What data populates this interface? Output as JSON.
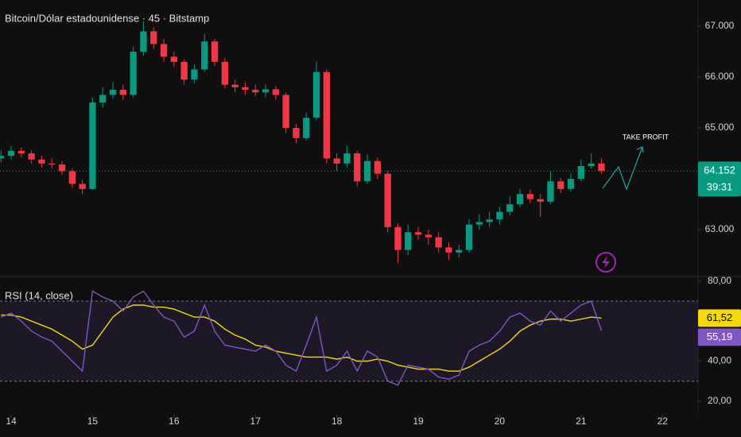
{
  "chart_data": [
    {
      "type": "candlestick",
      "title": "Bitcoin/Dólar estadounidense · 45 · Bitstamp",
      "annotation": "TAKE PROFIT",
      "up_color": "#089981",
      "down_color": "#f23645",
      "x": [
        13.875,
        14,
        14.125,
        14.25,
        14.375,
        14.5,
        14.625,
        14.75,
        14.875,
        15,
        15.125,
        15.25,
        15.375,
        15.5,
        15.625,
        15.75,
        15.875,
        16,
        16.125,
        16.25,
        16.375,
        16.5,
        16.625,
        16.75,
        16.875,
        17,
        17.125,
        17.25,
        17.375,
        17.5,
        17.625,
        17.75,
        17.875,
        18,
        18.125,
        18.25,
        18.375,
        18.5,
        18.625,
        18.75,
        18.875,
        19,
        19.125,
        19.25,
        19.375,
        19.5,
        19.625,
        19.75,
        19.875,
        20,
        20.125,
        20.25,
        20.375,
        20.5,
        20.625,
        20.75,
        20.875,
        21,
        21.125,
        21.25
      ],
      "candles": [
        [
          64400,
          64560,
          64320,
          64450
        ],
        [
          64450,
          64650,
          64380,
          64550
        ],
        [
          64550,
          64620,
          64420,
          64500
        ],
        [
          64500,
          64560,
          64300,
          64380
        ],
        [
          64380,
          64450,
          64220,
          64300
        ],
        [
          64300,
          64400,
          64200,
          64280
        ],
        [
          64280,
          64350,
          64080,
          64150
        ],
        [
          64150,
          64200,
          63820,
          63900
        ],
        [
          63900,
          63980,
          63700,
          63800
        ],
        [
          63800,
          65600,
          63780,
          65500
        ],
        [
          65500,
          65800,
          65400,
          65650
        ],
        [
          65650,
          65900,
          65580,
          65750
        ],
        [
          65750,
          65850,
          65550,
          65650
        ],
        [
          65650,
          66600,
          65600,
          66500
        ],
        [
          66500,
          67100,
          66420,
          66900
        ],
        [
          66900,
          66980,
          66550,
          66650
        ],
        [
          66650,
          66750,
          66300,
          66400
        ],
        [
          66400,
          66500,
          66200,
          66300
        ],
        [
          66300,
          66350,
          65850,
          65950
        ],
        [
          65950,
          66250,
          65880,
          66150
        ],
        [
          66150,
          66850,
          66100,
          66700
        ],
        [
          66700,
          66750,
          66220,
          66300
        ],
        [
          66300,
          66380,
          65780,
          65850
        ],
        [
          65850,
          65950,
          65700,
          65800
        ],
        [
          65800,
          65900,
          65650,
          65750
        ],
        [
          65750,
          65850,
          65620,
          65700
        ],
        [
          65700,
          65850,
          65600,
          65760
        ],
        [
          65760,
          65820,
          65560,
          65650
        ],
        [
          65650,
          65700,
          64900,
          65000
        ],
        [
          65000,
          65080,
          64700,
          64800
        ],
        [
          64800,
          65300,
          64750,
          65200
        ],
        [
          65200,
          66300,
          65150,
          66100
        ],
        [
          66100,
          66150,
          64300,
          64400
        ],
        [
          64400,
          64500,
          64150,
          64300
        ],
        [
          64300,
          64650,
          64220,
          64500
        ],
        [
          64500,
          64550,
          63850,
          63950
        ],
        [
          63950,
          64480,
          63900,
          64350
        ],
        [
          64350,
          64420,
          64000,
          64100
        ],
        [
          64100,
          64150,
          62950,
          63050
        ],
        [
          63050,
          63120,
          62350,
          62600
        ],
        [
          62600,
          63100,
          62500,
          62950
        ],
        [
          62950,
          63050,
          62800,
          62900
        ],
        [
          62900,
          63000,
          62700,
          62850
        ],
        [
          62850,
          62950,
          62550,
          62650
        ],
        [
          62650,
          62750,
          62400,
          62550
        ],
        [
          62550,
          62700,
          62450,
          62600
        ],
        [
          62600,
          63200,
          62550,
          63100
        ],
        [
          63100,
          63300,
          63000,
          63150
        ],
        [
          63150,
          63350,
          63050,
          63200
        ],
        [
          63200,
          63450,
          63100,
          63350
        ],
        [
          63350,
          63650,
          63280,
          63500
        ],
        [
          63500,
          63800,
          63450,
          63700
        ],
        [
          63700,
          63780,
          63520,
          63600
        ],
        [
          63600,
          63700,
          63250,
          63550
        ],
        [
          63550,
          64150,
          63500,
          63950
        ],
        [
          63950,
          64020,
          63720,
          63800
        ],
        [
          63800,
          64100,
          63750,
          64000
        ],
        [
          64000,
          64380,
          63950,
          64250
        ],
        [
          64250,
          64500,
          64200,
          64300
        ],
        [
          64300,
          64400,
          64100,
          64152
        ]
      ],
      "last_price": {
        "value": 64152,
        "label": "64.152"
      },
      "countdown": "39:31",
      "xlim": [
        13.863,
        22.437
      ],
      "ylim": [
        62094,
        67516
      ],
      "yticks": [
        {
          "value": 63000,
          "label": "63.000"
        },
        {
          "value": 65000,
          "label": "65.000"
        },
        {
          "value": 66000,
          "label": "66.000"
        },
        {
          "value": 67000,
          "label": "67.000"
        }
      ]
    },
    {
      "type": "line",
      "title": "RSI (14, close)",
      "x": [
        13.875,
        14,
        14.125,
        14.25,
        14.375,
        14.5,
        14.625,
        14.75,
        14.875,
        15,
        15.125,
        15.25,
        15.375,
        15.5,
        15.625,
        15.75,
        15.875,
        16,
        16.125,
        16.25,
        16.375,
        16.5,
        16.625,
        16.75,
        16.875,
        17,
        17.125,
        17.25,
        17.375,
        17.5,
        17.625,
        17.75,
        17.875,
        18,
        18.125,
        18.25,
        18.375,
        18.5,
        18.625,
        18.75,
        18.875,
        19,
        19.125,
        19.25,
        19.375,
        19.5,
        19.625,
        19.75,
        19.875,
        20,
        20.125,
        20.25,
        20.375,
        20.5,
        20.625,
        20.75,
        20.875,
        21,
        21.125,
        21.25
      ],
      "series": [
        {
          "color": "#f5d90a",
          "values": [
            63,
            63,
            62,
            60,
            58,
            56,
            53,
            50,
            46,
            48,
            55,
            62,
            66,
            68,
            68,
            67,
            67,
            66,
            64,
            62,
            62,
            60,
            56,
            53,
            51,
            48,
            47,
            45,
            44,
            43,
            42,
            42,
            42,
            41,
            42,
            40,
            40,
            41,
            40,
            38,
            37,
            36,
            36,
            36,
            35,
            35,
            37,
            40,
            43,
            46,
            50,
            55,
            58,
            60,
            61,
            61,
            60,
            61,
            62,
            61.52
          ],
          "value_labels": [
            null,
            null,
            null,
            null,
            null,
            null,
            null,
            null,
            null,
            null,
            null,
            null,
            null,
            null,
            null,
            null,
            null,
            null,
            null,
            null,
            null,
            null,
            null,
            null,
            null,
            null,
            null,
            null,
            null,
            null,
            null,
            null,
            null,
            null,
            null,
            null,
            null,
            null,
            null,
            null,
            null,
            null,
            null,
            null,
            null,
            null,
            null,
            null,
            null,
            null,
            null,
            null,
            null,
            null,
            null,
            null,
            null,
            null,
            null,
            "61,52"
          ]
        },
        {
          "color": "#7e57c2",
          "values": [
            62,
            64,
            60,
            55,
            52,
            50,
            45,
            40,
            35,
            75,
            72,
            70,
            65,
            72,
            75,
            68,
            62,
            60,
            52,
            55,
            68,
            55,
            48,
            47,
            46,
            45,
            48,
            45,
            38,
            35,
            48,
            62,
            35,
            38,
            45,
            35,
            45,
            42,
            30,
            28,
            38,
            37,
            36,
            32,
            31,
            33,
            45,
            48,
            50,
            55,
            62,
            64,
            60,
            58,
            65,
            60,
            64,
            68,
            70,
            55.19
          ],
          "value_labels": [
            null,
            null,
            null,
            null,
            null,
            null,
            null,
            null,
            null,
            null,
            null,
            null,
            null,
            null,
            null,
            null,
            null,
            null,
            null,
            null,
            null,
            null,
            null,
            null,
            null,
            null,
            null,
            null,
            null,
            null,
            null,
            null,
            null,
            null,
            null,
            null,
            null,
            null,
            null,
            null,
            null,
            null,
            null,
            null,
            null,
            null,
            null,
            null,
            null,
            null,
            null,
            null,
            null,
            null,
            null,
            null,
            null,
            null,
            null,
            "55,19"
          ]
        }
      ],
      "bands": [
        70,
        30
      ],
      "xlim": [
        13.863,
        22.437
      ],
      "ylim": [
        13.2,
        81.5
      ],
      "xticks": [
        14,
        15,
        16,
        17,
        18,
        19,
        20,
        21,
        22
      ],
      "yticks": [
        {
          "value": 20,
          "label": "20,00"
        },
        {
          "value": 40,
          "label": "40,00"
        },
        {
          "value": 80,
          "label": "80,00"
        }
      ]
    }
  ]
}
